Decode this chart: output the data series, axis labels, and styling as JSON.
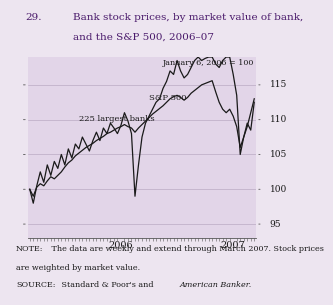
{
  "title_number": "29.",
  "title_line1": "Bank stock prices, by market value of bank,",
  "title_line2": "and the S&P 500, 2006–07",
  "annotation": "January 6, 2006 = 100",
  "label_banks": "225 largest banks",
  "label_sp500": "S&P 500",
  "ylim": [
    93,
    119
  ],
  "yticks": [
    95,
    100,
    105,
    110,
    115
  ],
  "background_color": "#ede5f0",
  "plot_bg_color": "#e2d5e8",
  "line_color": "#1a1a1a",
  "title_color": "#4a1a6b",
  "note_text": "NOTE:  The data are weekly and extend through March 2007. Stock prices\nare weighted by market value.",
  "source_text": "SOURCE:  Standard & Poor’s and ",
  "source_italic": "American Banker.",
  "n_weeks": 65,
  "sp500": [
    100,
    99.0,
    100.3,
    100.8,
    100.5,
    101.2,
    101.8,
    101.5,
    102.0,
    102.5,
    103.2,
    103.8,
    104.2,
    104.8,
    105.2,
    105.6,
    106.0,
    106.3,
    106.6,
    107.0,
    107.3,
    107.6,
    108.0,
    108.2,
    108.5,
    108.8,
    109.0,
    109.3,
    109.0,
    108.8,
    108.2,
    108.8,
    109.3,
    109.8,
    110.3,
    110.8,
    111.2,
    111.6,
    112.0,
    112.5,
    113.0,
    113.3,
    113.5,
    113.2,
    112.8,
    113.2,
    113.8,
    114.2,
    114.6,
    115.0,
    115.2,
    115.4,
    115.6,
    114.0,
    112.5,
    111.5,
    111.0,
    111.5,
    110.5,
    109.0,
    106.0,
    107.5,
    109.0,
    111.0,
    113.0
  ],
  "banks": [
    100,
    98.0,
    100.5,
    102.5,
    101.0,
    103.5,
    102.0,
    104.0,
    103.0,
    105.0,
    103.5,
    105.8,
    104.5,
    106.5,
    105.8,
    107.5,
    106.5,
    105.5,
    107.0,
    108.2,
    107.0,
    108.8,
    108.0,
    109.5,
    108.8,
    108.0,
    109.2,
    111.0,
    109.8,
    108.0,
    99.0,
    103.5,
    107.5,
    109.5,
    110.5,
    111.5,
    112.5,
    113.0,
    114.5,
    115.5,
    117.0,
    116.5,
    118.5,
    117.0,
    116.0,
    116.5,
    117.5,
    118.5,
    119.0,
    118.5,
    118.8,
    119.2,
    119.5,
    118.0,
    117.5,
    118.5,
    119.0,
    119.5,
    116.5,
    113.5,
    105.0,
    107.5,
    109.5,
    108.5,
    112.5
  ]
}
